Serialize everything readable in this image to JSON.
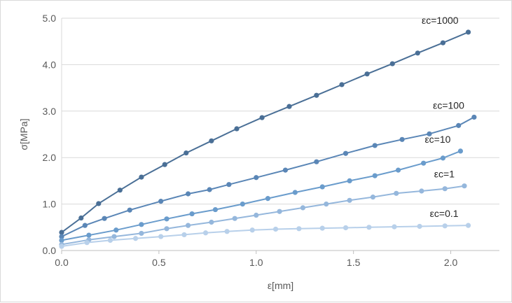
{
  "chart_data": {
    "type": "line",
    "title": "",
    "xlabel": "ε[mm]",
    "ylabel": "σ[MPa]",
    "xlim": [
      0,
      2.25
    ],
    "ylim": [
      0,
      5.0
    ],
    "xticks": [
      "0.0",
      "0.5",
      "1.0",
      "1.5",
      "2.0"
    ],
    "yticks": [
      "0.0",
      "1.0",
      "2.0",
      "3.0",
      "4.0",
      "5.0"
    ],
    "grid": "horizontal",
    "legend": "none",
    "series": [
      {
        "name": "εc=1000",
        "color": "#4a6f96",
        "x": [
          0.0,
          0.1,
          0.19,
          0.3,
          0.41,
          0.53,
          0.64,
          0.77,
          0.9,
          1.03,
          1.17,
          1.31,
          1.44,
          1.57,
          1.7,
          1.83,
          1.96,
          2.09
        ],
        "y": [
          0.39,
          0.7,
          1.01,
          1.3,
          1.58,
          1.85,
          2.1,
          2.36,
          2.62,
          2.86,
          3.1,
          3.34,
          3.57,
          3.8,
          4.02,
          4.25,
          4.47,
          4.7
        ]
      },
      {
        "name": "εc=100",
        "color": "#5a86b6",
        "x": [
          0.0,
          0.12,
          0.22,
          0.35,
          0.51,
          0.65,
          0.76,
          0.86,
          1.0,
          1.15,
          1.31,
          1.46,
          1.61,
          1.75,
          1.89,
          2.04,
          2.12
        ],
        "y": [
          0.3,
          0.54,
          0.69,
          0.87,
          1.06,
          1.22,
          1.31,
          1.42,
          1.57,
          1.73,
          1.91,
          2.09,
          2.26,
          2.39,
          2.51,
          2.69,
          2.87
        ]
      },
      {
        "name": "εc=10",
        "color": "#6a9ccc",
        "x": [
          0.0,
          0.14,
          0.28,
          0.41,
          0.54,
          0.67,
          0.79,
          0.93,
          1.06,
          1.2,
          1.34,
          1.48,
          1.61,
          1.73,
          1.86,
          1.96,
          2.05
        ],
        "y": [
          0.22,
          0.33,
          0.44,
          0.56,
          0.68,
          0.79,
          0.88,
          1.0,
          1.12,
          1.25,
          1.37,
          1.5,
          1.61,
          1.73,
          1.88,
          1.99,
          2.14
        ]
      },
      {
        "name": "εc=1",
        "color": "#95b7dc",
        "x": [
          0.0,
          0.14,
          0.27,
          0.41,
          0.54,
          0.65,
          0.77,
          0.89,
          1.0,
          1.12,
          1.24,
          1.36,
          1.48,
          1.6,
          1.72,
          1.85,
          1.97,
          2.07
        ],
        "y": [
          0.13,
          0.23,
          0.3,
          0.37,
          0.47,
          0.54,
          0.61,
          0.69,
          0.76,
          0.84,
          0.92,
          1.0,
          1.08,
          1.15,
          1.23,
          1.28,
          1.33,
          1.39
        ]
      },
      {
        "name": "εc=0.1",
        "color": "#b8d0ea",
        "x": [
          0.0,
          0.13,
          0.25,
          0.38,
          0.51,
          0.63,
          0.74,
          0.85,
          0.98,
          1.1,
          1.22,
          1.34,
          1.46,
          1.58,
          1.71,
          1.84,
          1.97,
          2.09
        ],
        "y": [
          0.09,
          0.17,
          0.22,
          0.26,
          0.3,
          0.34,
          0.38,
          0.41,
          0.44,
          0.46,
          0.47,
          0.48,
          0.49,
          0.5,
          0.51,
          0.52,
          0.53,
          0.54
        ]
      }
    ]
  }
}
